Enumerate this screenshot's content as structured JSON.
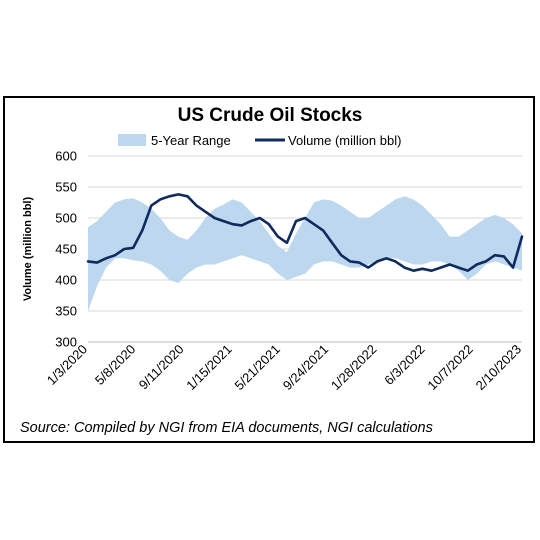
{
  "chart_data": {
    "type": "line",
    "title": "US Crude Oil Stocks",
    "ylabel": "Volume (million bbl)",
    "xlabel": "",
    "ylim": [
      300,
      600
    ],
    "yticks": [
      "600",
      "550",
      "500",
      "450",
      "400",
      "350",
      "300"
    ],
    "xticks": [
      "1/3/2020",
      "5/8/2020",
      "9/11/2020",
      "1/15/2021",
      "5/21/2021",
      "9/24/2021",
      "1/28/2022",
      "6/3/2022",
      "10/7/2022",
      "2/10/2023"
    ],
    "grid": "horizontal",
    "legend": "top",
    "source": "Source: Compiled by NGI from EIA documents, NGI calculations",
    "series": [
      {
        "name": "5-Year Range",
        "kind": "band",
        "color": "#bdd7ee",
        "upper": [
          485,
          495,
          510,
          525,
          530,
          532,
          525,
          515,
          500,
          480,
          470,
          465,
          480,
          500,
          515,
          522,
          530,
          525,
          510,
          495,
          475,
          455,
          445,
          475,
          500,
          525,
          530,
          528,
          520,
          510,
          500,
          500,
          510,
          520,
          530,
          535,
          530,
          520,
          505,
          490,
          470,
          470,
          480,
          490,
          500,
          505,
          500,
          490,
          475
        ],
        "lower": [
          350,
          390,
          420,
          435,
          435,
          432,
          430,
          425,
          415,
          400,
          395,
          410,
          420,
          425,
          425,
          430,
          435,
          440,
          435,
          430,
          425,
          410,
          400,
          405,
          410,
          425,
          430,
          430,
          425,
          420,
          420,
          425,
          430,
          435,
          435,
          430,
          425,
          425,
          430,
          430,
          425,
          415,
          400,
          410,
          425,
          430,
          425,
          420,
          415
        ]
      },
      {
        "name": "Volume (million bbl)",
        "kind": "line",
        "color": "#0f2a5e",
        "values": [
          430,
          428,
          435,
          440,
          450,
          452,
          480,
          520,
          530,
          535,
          538,
          535,
          520,
          510,
          500,
          495,
          490,
          488,
          495,
          500,
          490,
          470,
          460,
          495,
          500,
          490,
          480,
          460,
          440,
          430,
          428,
          420,
          430,
          435,
          430,
          420,
          415,
          418,
          415,
          420,
          425,
          420,
          415,
          425,
          430,
          440,
          438,
          420,
          470
        ]
      }
    ]
  }
}
